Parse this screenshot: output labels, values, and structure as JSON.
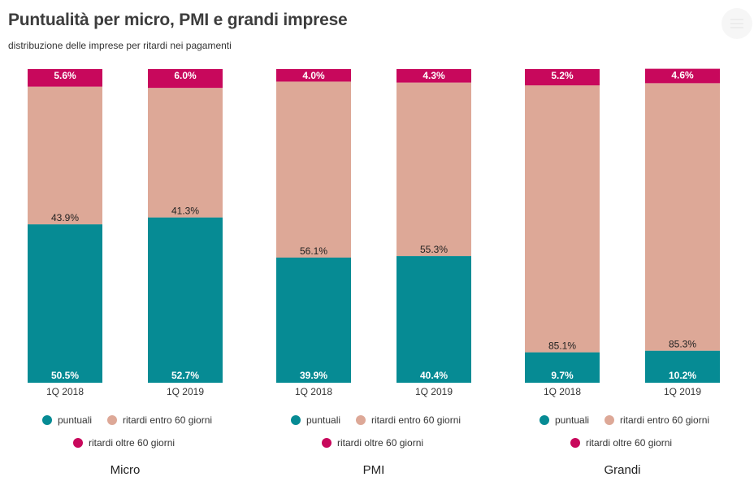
{
  "title": "Puntualità per micro, PMI e grandi imprese",
  "subtitle": "distribuzione delle imprese per ritardi nei pagamenti",
  "colors": {
    "puntuali": "#068b94",
    "ritardi_entro_60": "#dda897",
    "ritardi_oltre_60": "#c8085c"
  },
  "menu_icon": "hamburger-menu-icon",
  "chart_data": [
    {
      "type": "bar",
      "stacked": true,
      "percent": true,
      "title": "Micro",
      "categories": [
        "1Q 2018",
        "1Q 2019"
      ],
      "series": [
        {
          "name": "puntuali",
          "values": [
            50.5,
            52.7
          ],
          "labels": [
            "50.5%",
            "52.7%"
          ]
        },
        {
          "name": "ritardi entro 60 giorni",
          "values": [
            43.9,
            41.3
          ],
          "labels": [
            "43.9%",
            "41.3%"
          ]
        },
        {
          "name": "ritardi oltre 60 giorni",
          "values": [
            5.6,
            6.0
          ],
          "labels": [
            "5.6%",
            "6.0%"
          ]
        }
      ],
      "ylim": [
        0,
        100
      ]
    },
    {
      "type": "bar",
      "stacked": true,
      "percent": true,
      "title": "PMI",
      "categories": [
        "1Q 2018",
        "1Q 2019"
      ],
      "series": [
        {
          "name": "puntuali",
          "values": [
            39.9,
            40.4
          ],
          "labels": [
            "39.9%",
            "40.4%"
          ]
        },
        {
          "name": "ritardi entro 60 giorni",
          "values": [
            56.1,
            55.3
          ],
          "labels": [
            "56.1%",
            "55.3%"
          ]
        },
        {
          "name": "ritardi oltre 60 giorni",
          "values": [
            4.0,
            4.3
          ],
          "labels": [
            "4.0%",
            "4.3%"
          ]
        }
      ],
      "ylim": [
        0,
        100
      ]
    },
    {
      "type": "bar",
      "stacked": true,
      "percent": true,
      "title": "Grandi",
      "categories": [
        "1Q 2018",
        "1Q 2019"
      ],
      "series": [
        {
          "name": "puntuali",
          "values": [
            9.7,
            10.2
          ],
          "labels": [
            "9.7%",
            "10.2%"
          ]
        },
        {
          "name": "ritardi entro 60 giorni",
          "values": [
            85.1,
            85.3
          ],
          "labels": [
            "85.1%",
            "85.3%"
          ]
        },
        {
          "name": "ritardi oltre 60 giorni",
          "values": [
            5.2,
            4.6
          ],
          "labels": [
            "5.2%",
            "4.6%"
          ]
        }
      ],
      "ylim": [
        0,
        100
      ]
    }
  ]
}
